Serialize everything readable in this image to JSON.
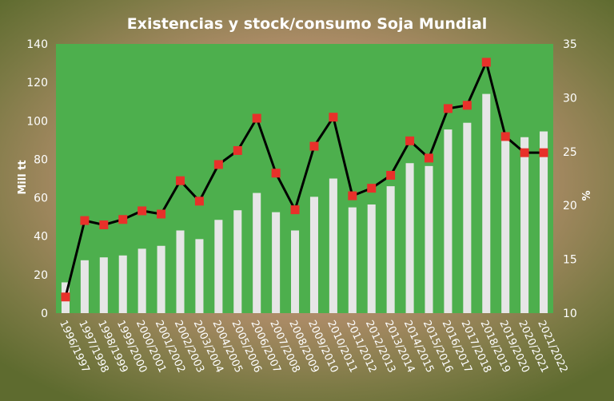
{
  "chart_data": {
    "type": "bar+line",
    "title": "Existencias y stock/consumo Soja Mundial",
    "ylabel_left": "Mill tt",
    "ylabel_right": "%",
    "ylim_left": [
      0,
      140
    ],
    "ylim_right": [
      10,
      35
    ],
    "yticks_left": [
      "0",
      "20",
      "40",
      "60",
      "80",
      "100",
      "120",
      "140"
    ],
    "yticks_right": [
      "10",
      "15",
      "20",
      "25",
      "30",
      "35"
    ],
    "grid": false,
    "legend": "none",
    "categories": [
      "1996/1997",
      "1997/1998",
      "1998/1999",
      "1999/2000",
      "2000/2001",
      "2001/2002",
      "2002/2003",
      "2003/2004",
      "2004/2005",
      "2005/2006",
      "2006/2007",
      "2007/2008",
      "2008/2009",
      "2009/2010",
      "2010/2011",
      "2011/2012",
      "2012/2013",
      "2013/2014",
      "2014/2015",
      "2015/2016",
      "2016/2017",
      "2017/2018",
      "2018/2019",
      "2019/2020",
      "2020/2021",
      "2021/2022"
    ],
    "series": [
      {
        "axis": "left",
        "type": "bar",
        "values": [
          16,
          27.5,
          29,
          30,
          33.5,
          35,
          43,
          38.5,
          48.5,
          53.5,
          62.5,
          52.5,
          43,
          60.5,
          70,
          55,
          56.5,
          66,
          78,
          76.5,
          95.5,
          99,
          114,
          92.5,
          91.5,
          94.5
        ]
      },
      {
        "axis": "right",
        "type": "line",
        "values": [
          11.5,
          18.6,
          18.2,
          18.7,
          19.5,
          19.2,
          22.3,
          20.4,
          23.8,
          25.1,
          28.1,
          23.0,
          19.6,
          25.5,
          28.2,
          20.9,
          21.6,
          22.8,
          26.0,
          24.4,
          29.0,
          29.3,
          33.3,
          26.4,
          24.9,
          24.9
        ]
      }
    ],
    "colors": {
      "plot_bg": "#4daf4d",
      "bar": "#e6e6e6",
      "line": "#000000",
      "marker": "#e8312a",
      "text": "#ffffff"
    }
  }
}
